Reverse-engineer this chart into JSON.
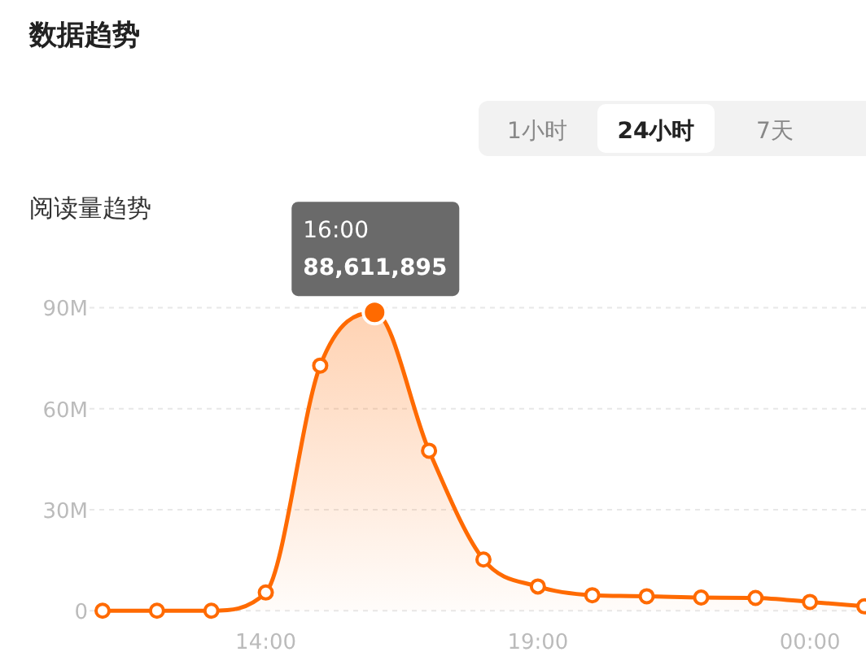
{
  "chart_data": {
    "type": "area",
    "title": "数据趋势",
    "subtitle": "阅读量趋势",
    "annotations": [
      "1小时",
      "24小时",
      "7天"
    ],
    "categories": [
      null,
      null,
      null,
      "14:00",
      null,
      null,
      null,
      null,
      "19:00",
      null,
      null,
      null,
      null,
      "00:00",
      null
    ],
    "series": [
      {
        "color": "#ff6a00",
        "values": [
          0,
          0,
          0,
          5.4,
          72.8,
          88.611895,
          47.5,
          15.2,
          7.2,
          4.6,
          4.3,
          3.9,
          3.8,
          2.6,
          1.3
        ],
        "value_labels": [
          null,
          null,
          null,
          null,
          null,
          "16:00\n88,611,895",
          null,
          null,
          null,
          null,
          null,
          null,
          null,
          null,
          null
        ]
      }
    ],
    "ylim": [
      0,
      90
    ],
    "yticks": [
      0,
      {
        "value": 30,
        "label": "30M"
      },
      {
        "value": 60,
        "label": "60M"
      },
      {
        "value": 90,
        "label": "90M"
      }
    ],
    "grid": "y",
    "marker": "circle"
  }
}
